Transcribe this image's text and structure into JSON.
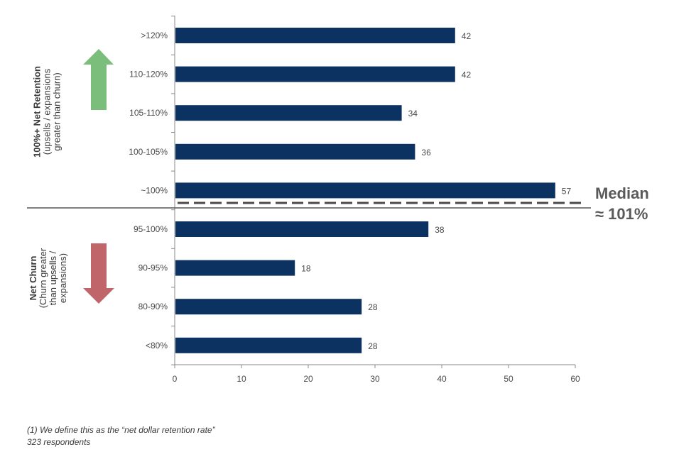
{
  "chart_data": {
    "type": "bar",
    "orientation": "horizontal",
    "categories": [
      ">120%",
      "110-120%",
      "105-110%",
      "100-105%",
      "~100%",
      "95-100%",
      "90-95%",
      "80-90%",
      "<80%"
    ],
    "values": [
      42,
      42,
      34,
      36,
      57,
      38,
      18,
      28,
      28
    ],
    "xlim": [
      0,
      60
    ],
    "xticks": [
      0,
      10,
      20,
      30,
      40,
      50,
      60
    ],
    "bar_color": "#0c3262",
    "grid": false,
    "annotations": {
      "median_line": "Median",
      "median_value": "≈ 101%"
    },
    "groups": {
      "upper": {
        "title": "100%+ Net Retention",
        "subtitle_1": "(upsells / expansions",
        "subtitle_2": "greater than churn)",
        "arrow_color": "#7bbd7a"
      },
      "lower": {
        "title": "Net Churn",
        "subtitle_1": "(Churn greater",
        "subtitle_2": "than upsells /",
        "subtitle_3": "expansions)",
        "arrow_color": "#c0666a"
      }
    }
  },
  "footnotes": {
    "line1": "(1)    We define this as the “net dollar retention rate”",
    "line2": "323 respondents"
  }
}
